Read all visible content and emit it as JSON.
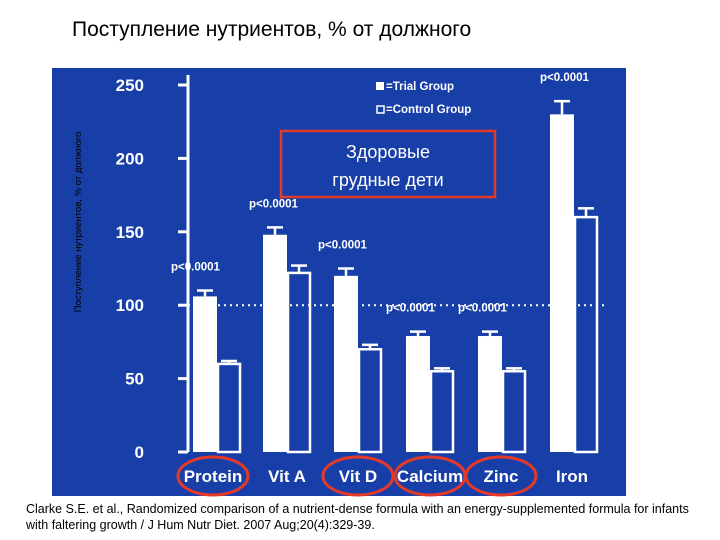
{
  "page": {
    "title": "Поступление нутриентов, % от должного",
    "y_caption": "Поступление нутриентов, % от должного",
    "citation": "Clarke S.E. et al., Randomized comparison of a nutrient-dense formula with an energy-supplemented formula for infants with faltering growth / J Hum Nutr Diet. 2007 Aug;20(4):329-39."
  },
  "callout": {
    "line1": "Здоровые",
    "line2": "грудные дети",
    "border_color": "#e23a2a"
  },
  "colors": {
    "background": "#183fa8",
    "bars": "#ffffff",
    "reference_line": "#ffffff",
    "highlight_ellipse": "#e23a2a"
  },
  "chart_data": {
    "type": "bar",
    "categories": [
      "Protein",
      "Vit A",
      "Vit D",
      "Calcium",
      "Zinc",
      "Iron"
    ],
    "series": [
      {
        "name": "=Trial Group",
        "style": "solid",
        "values": [
          106,
          148,
          120,
          79,
          79,
          230
        ],
        "errors": [
          4,
          5,
          5,
          3,
          3,
          9
        ]
      },
      {
        "name": "=Control Group",
        "style": "outline",
        "values": [
          60,
          122,
          70,
          55,
          55,
          160
        ],
        "errors": [
          2,
          5,
          3,
          2,
          2,
          6
        ]
      }
    ],
    "p_values": [
      "p<0.0001",
      "p<0.0001",
      "p<0.0001",
      "p<0.0001",
      "p<0.0001",
      "p<0.0001"
    ],
    "y_ticks": [
      0,
      50,
      100,
      150,
      200,
      250
    ],
    "ylim": [
      0,
      260
    ],
    "reference_value": 100,
    "reference_style": "dotted",
    "highlighted_categories": [
      "Protein",
      "Vit D",
      "Calcium",
      "Zinc"
    ],
    "legend_position": "top-right",
    "grid": false
  }
}
